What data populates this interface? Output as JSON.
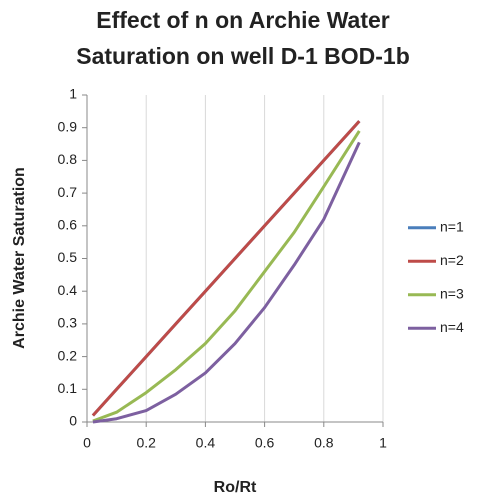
{
  "chart_data": {
    "type": "line",
    "title": [
      "Effect of n on Archie Water",
      "Saturation on well D-1 BOD-1b"
    ],
    "xlabel": "Ro/Rt",
    "ylabel": "Archie Water Saturation",
    "x": [
      0.02,
      0.1,
      0.2,
      0.3,
      0.4,
      0.5,
      0.6,
      0.7,
      0.8,
      0.92
    ],
    "series": [
      {
        "name": "n=1",
        "color": "#4a7ebb",
        "values": [
          0.02,
          0.1,
          0.2,
          0.3,
          0.4,
          0.5,
          0.6,
          0.7,
          0.8,
          0.92
        ]
      },
      {
        "name": "n=2",
        "color": "#be4b48",
        "values": [
          0.02,
          0.1,
          0.2,
          0.3,
          0.4,
          0.5,
          0.6,
          0.7,
          0.8,
          0.92
        ]
      },
      {
        "name": "n=3",
        "color": "#98b954",
        "values": [
          0.003,
          0.03,
          0.09,
          0.16,
          0.24,
          0.34,
          0.46,
          0.58,
          0.72,
          0.89
        ]
      },
      {
        "name": "n=4",
        "color": "#7d60a0",
        "values": [
          0,
          0.01,
          0.035,
          0.085,
          0.15,
          0.24,
          0.35,
          0.48,
          0.62,
          0.855
        ]
      }
    ],
    "xlim": [
      0,
      1
    ],
    "xticks": [
      0,
      0.2,
      0.4,
      0.6,
      0.8,
      1
    ],
    "ylim": [
      0,
      1
    ],
    "yticks": [
      0,
      0.1,
      0.2,
      0.3,
      0.4,
      0.5,
      0.6,
      0.7,
      0.8,
      0.9,
      1
    ],
    "grid": "x",
    "legend": "right"
  }
}
